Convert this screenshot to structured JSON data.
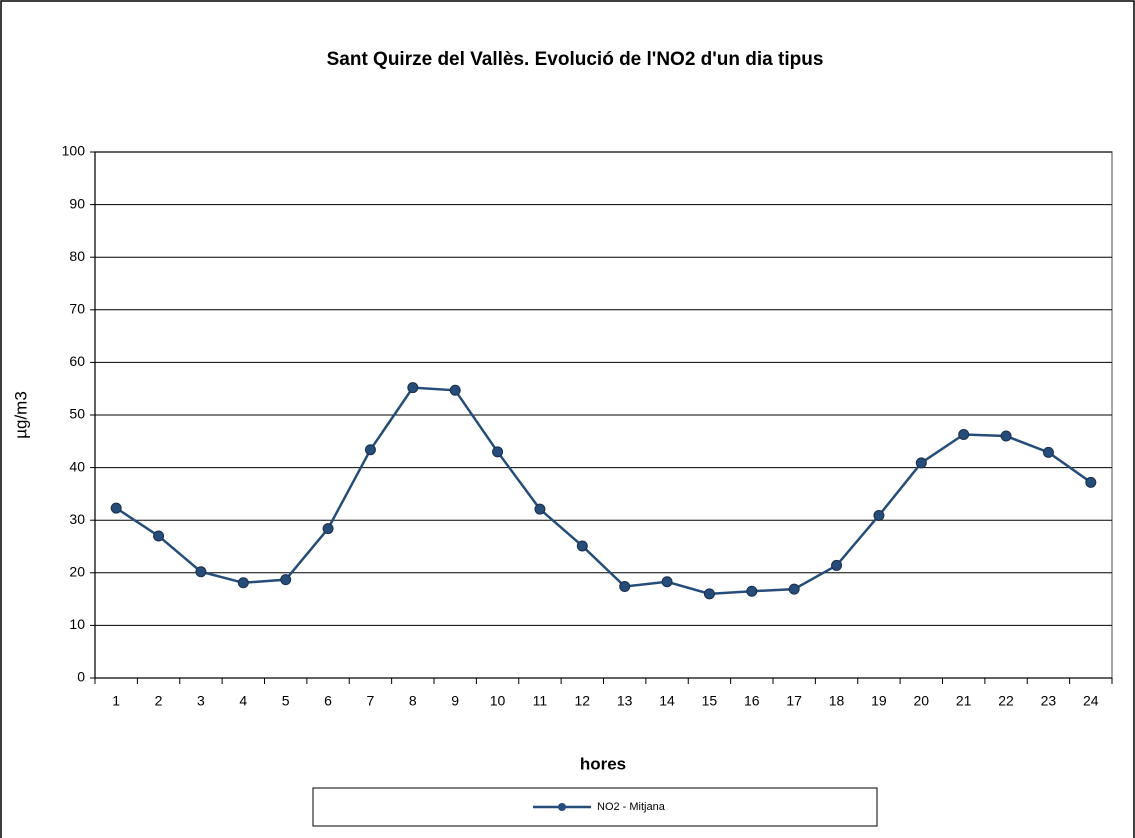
{
  "chart_data": {
    "type": "line",
    "title": "Sant Quirze del Vallès. Evolució de l'NO2 d'un dia tipus",
    "x_label": "hores",
    "y_label": "µg/m3",
    "categories": [
      "1",
      "2",
      "3",
      "4",
      "5",
      "6",
      "7",
      "8",
      "9",
      "10",
      "11",
      "12",
      "13",
      "14",
      "15",
      "16",
      "17",
      "18",
      "19",
      "20",
      "21",
      "22",
      "23",
      "24"
    ],
    "series": [
      {
        "name": "NO2 - Mitjana",
        "color": "#264d7a",
        "values": [
          32.3,
          27,
          20.2,
          18.1,
          18.7,
          28.4,
          43.4,
          55.2,
          54.7,
          43,
          32.1,
          25.1,
          17.4,
          18.3,
          16,
          16.5,
          16.9,
          21.4,
          30.9,
          40.9,
          46.3,
          46,
          42.9,
          37.2
        ]
      }
    ],
    "ylim": [
      0,
      100
    ],
    "yticks": [
      0,
      10,
      20,
      30,
      40,
      50,
      60,
      70,
      80,
      90,
      100
    ],
    "grid": true,
    "legend": "bottom"
  }
}
